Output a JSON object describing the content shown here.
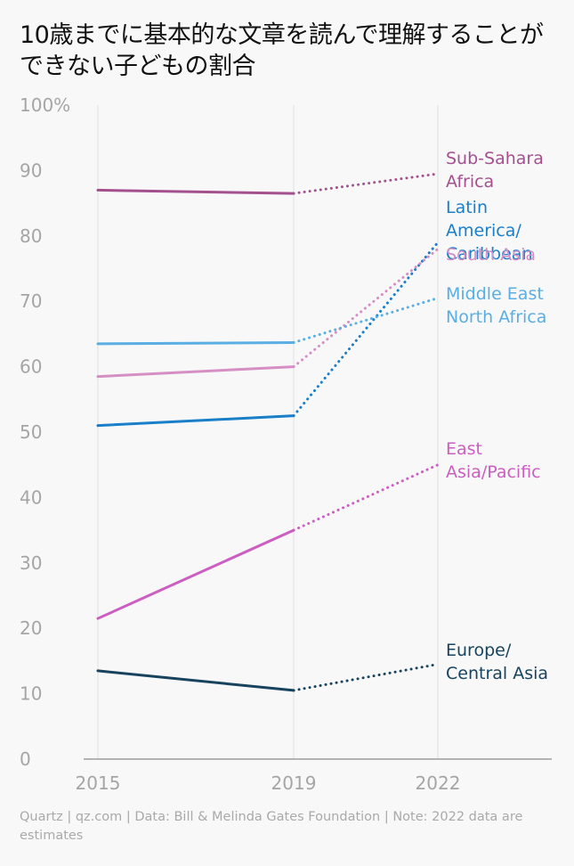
{
  "title": "10歳までに基本的な文章を読んで理解することができない子どもの割合",
  "footer": "Quartz | qz.com | Data: Bill & Melinda Gates Foundation | Note: 2022 data are estimates",
  "chart_data": {
    "type": "line",
    "x": [
      "2015",
      "2019",
      "2022"
    ],
    "ylim": [
      0,
      100
    ],
    "yticks": [
      "0",
      "10",
      "20",
      "30",
      "40",
      "50",
      "60",
      "70",
      "80",
      "90",
      "100%"
    ],
    "estimated_from_index": 1,
    "series": [
      {
        "name": "Sub-Sahara Africa",
        "label_lines": [
          "Sub-Sahara",
          "Africa"
        ],
        "color": "#a4508f",
        "values": [
          87,
          86.5,
          89.5
        ]
      },
      {
        "name": "Latin America/ Caribbean",
        "label_lines": [
          "Latin",
          "America/",
          "Caribbean"
        ],
        "color": "#1a7fc9",
        "values": [
          51,
          52.5,
          79
        ]
      },
      {
        "name": "South Asia",
        "label_lines": [
          "South Asia"
        ],
        "color": "#d58fc4",
        "values": [
          58.5,
          60,
          78
        ]
      },
      {
        "name": "Middle East North Africa",
        "label_lines": [
          "Middle East",
          "North Africa"
        ],
        "color": "#5aaee3",
        "values": [
          63.5,
          63.7,
          70.5
        ]
      },
      {
        "name": "East Asia/Pacific",
        "label_lines": [
          "East",
          "Asia/Pacific"
        ],
        "color": "#cc5ec2",
        "values": [
          21.5,
          35,
          45
        ]
      },
      {
        "name": "Europe/ Central Asia",
        "label_lines": [
          "Europe/",
          "Central Asia"
        ],
        "color": "#17435e",
        "values": [
          13.5,
          10.5,
          14.5
        ]
      }
    ]
  }
}
